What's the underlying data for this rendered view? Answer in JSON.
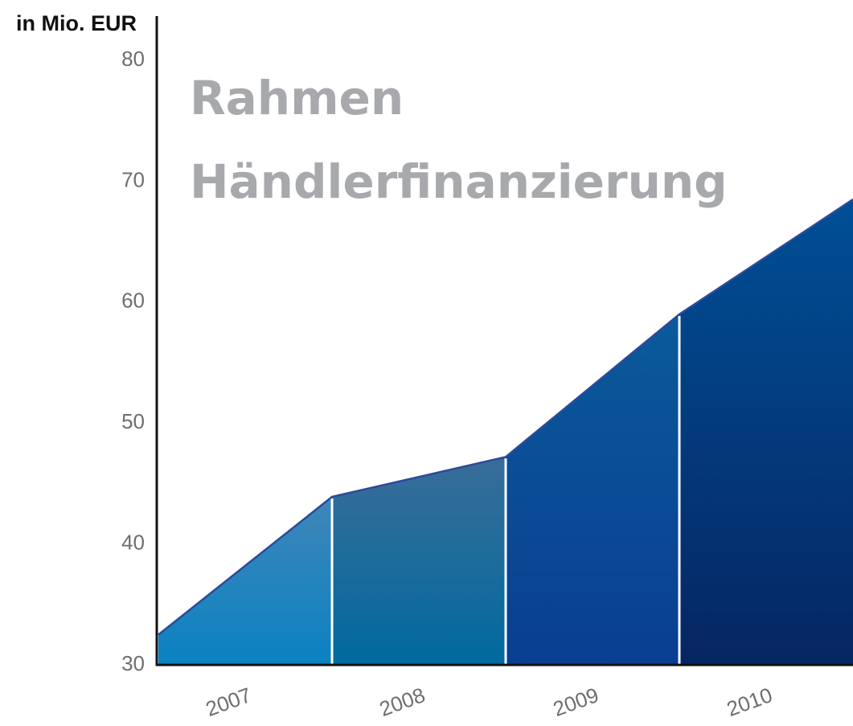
{
  "chart_data": {
    "type": "area",
    "title": "Rahmen Händlerfinanzierung",
    "y_label": "in Mio. EUR",
    "categories": [
      "2007",
      "2008",
      "2009",
      "2010"
    ],
    "start_value": 32.5,
    "values": [
      43.9,
      47.2,
      59.0,
      68.5
    ],
    "colors": [
      [
        "#3f86b8",
        "#0a82c2"
      ],
      [
        "#3a6d98",
        "#006a9e"
      ],
      [
        "#0a5a9a",
        "#0a3e92"
      ],
      [
        "#004f96",
        "#062662"
      ]
    ],
    "line_color": "#2b4a9a",
    "ylim": [
      30,
      80
    ],
    "yticks": [
      30,
      40,
      50,
      60,
      70,
      80
    ]
  }
}
